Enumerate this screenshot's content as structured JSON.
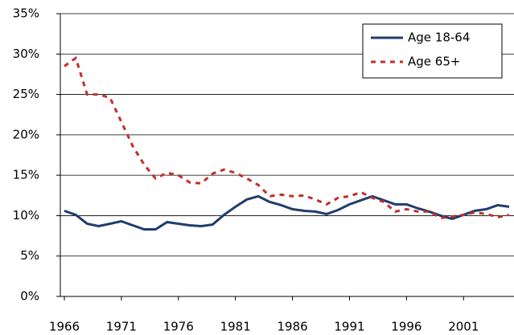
{
  "chart_data": {
    "type": "line",
    "x": [
      1966,
      1967,
      1968,
      1969,
      1970,
      1971,
      1972,
      1973,
      1974,
      1975,
      1976,
      1977,
      1978,
      1979,
      1980,
      1981,
      1982,
      1983,
      1984,
      1985,
      1986,
      1987,
      1988,
      1989,
      1990,
      1991,
      1992,
      1993,
      1994,
      1995,
      1996,
      1997,
      1998,
      1999,
      2000,
      2001,
      2002,
      2003,
      2004,
      2005
    ],
    "series": [
      {
        "name": "Age 18-64",
        "color": "#1f3d6d",
        "dash": false,
        "values": [
          10.6,
          10.1,
          9.0,
          8.7,
          9.0,
          9.3,
          8.8,
          8.3,
          8.3,
          9.2,
          9.0,
          8.8,
          8.7,
          8.9,
          10.1,
          11.1,
          12.0,
          12.4,
          11.7,
          11.3,
          10.8,
          10.6,
          10.5,
          10.2,
          10.7,
          11.4,
          11.9,
          12.4,
          11.9,
          11.4,
          11.4,
          10.9,
          10.5,
          10.0,
          9.6,
          10.1,
          10.6,
          10.8,
          11.3,
          11.1
        ]
      },
      {
        "name": "Age 65+",
        "color": "#c0312b",
        "dash": true,
        "values": [
          28.5,
          29.5,
          25.0,
          25.0,
          24.6,
          21.6,
          18.6,
          16.3,
          14.6,
          15.3,
          15.0,
          14.1,
          14.0,
          15.2,
          15.7,
          15.3,
          14.6,
          13.8,
          12.4,
          12.6,
          12.4,
          12.5,
          12.0,
          11.4,
          12.2,
          12.4,
          12.9,
          12.2,
          11.7,
          10.5,
          10.8,
          10.5,
          10.5,
          9.7,
          9.9,
          10.1,
          10.4,
          10.2,
          9.8,
          10.1
        ]
      }
    ],
    "xlim": [
      1966,
      2005
    ],
    "xticks": [
      1966,
      1971,
      1976,
      1981,
      1986,
      1991,
      1996,
      2001
    ],
    "ylim": [
      0,
      35
    ],
    "yticks": [
      {
        "value": 0,
        "label": "0%"
      },
      {
        "value": 5,
        "label": "5%"
      },
      {
        "value": 10,
        "label": "10%"
      },
      {
        "value": 15,
        "label": "15%"
      },
      {
        "value": 20,
        "label": "20%"
      },
      {
        "value": 25,
        "label": "25%"
      },
      {
        "value": 30,
        "label": "30%"
      },
      {
        "value": 35,
        "label": "35%"
      }
    ],
    "grid": true,
    "legend": "top-right"
  }
}
